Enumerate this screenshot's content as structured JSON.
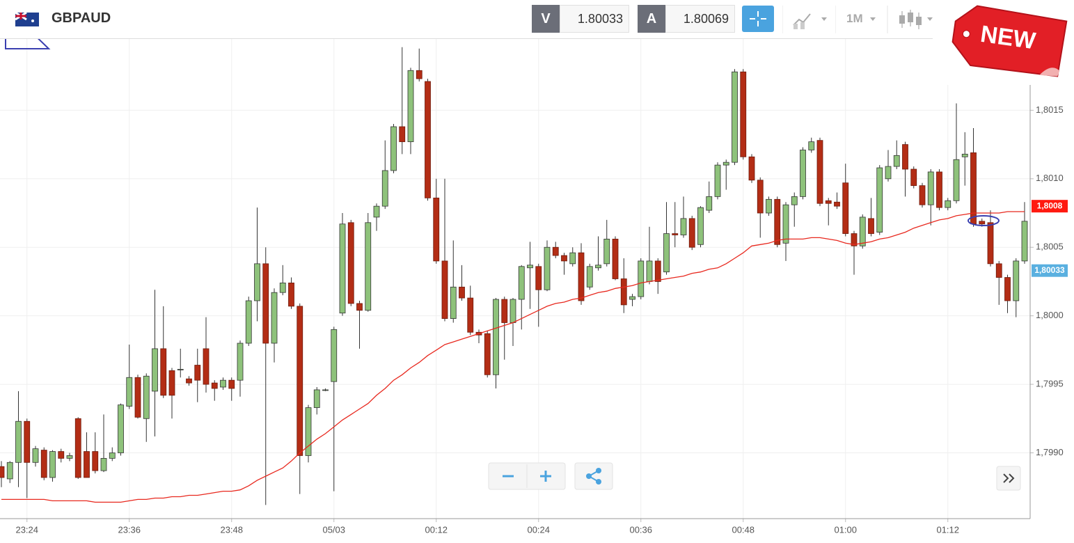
{
  "header": {
    "symbol": "GBPAUD",
    "bid_label": "V",
    "bid": "1.80033",
    "ask_label": "A",
    "ask": "1.80069",
    "timeframe": "1M"
  },
  "badge": "NEW",
  "chart_data": {
    "type": "candlestick",
    "categories": [
      null,
      null,
      null,
      "23:24",
      null,
      null,
      null,
      null,
      null,
      null,
      null,
      null,
      null,
      null,
      null,
      "23:36",
      null,
      null,
      null,
      null,
      null,
      null,
      null,
      null,
      null,
      null,
      null,
      "23:48",
      null,
      null,
      null,
      null,
      null,
      null,
      null,
      null,
      null,
      null,
      null,
      "05/03",
      null,
      null,
      null,
      null,
      null,
      null,
      null,
      null,
      null,
      null,
      null,
      "00:12",
      null,
      null,
      null,
      null,
      null,
      null,
      null,
      null,
      null,
      null,
      null,
      "00:24",
      null,
      null,
      null,
      null,
      null,
      null,
      null,
      null,
      null,
      null,
      null,
      "00:36",
      null,
      null,
      null,
      null,
      null,
      null,
      null,
      null,
      null,
      null,
      null,
      "00:48",
      null,
      null,
      null,
      null,
      null,
      null,
      null,
      null,
      null,
      null,
      null,
      "01:00",
      null,
      null,
      null,
      null,
      null,
      null,
      null,
      null,
      null,
      null,
      null,
      "01:12",
      null,
      null,
      null,
      null,
      null,
      null,
      null,
      null,
      null
    ],
    "open": [
      1.7989,
      1.79881,
      1.79893,
      1.79923,
      1.79893,
      1.79902,
      1.79882,
      1.79901,
      1.79896,
      1.79925,
      1.79901,
      1.79901,
      1.79887,
      1.79896,
      1.799,
      1.79934,
      1.79955,
      1.79925,
      1.79945,
      1.79976,
      1.7996,
      1.79961,
      1.79954,
      1.79964,
      1.79976,
      1.79951,
      1.79948,
      1.79953,
      1.79953,
      1.7998,
      1.80011,
      1.80038,
      1.7998,
      1.80017,
      1.80024,
      1.80007,
      1.79898,
      1.79933,
      1.79946,
      1.79952,
      1.80002,
      1.80068,
      1.80009,
      1.80004,
      1.80072,
      1.8008,
      1.80106,
      1.80138,
      1.80127,
      1.80179,
      1.80171,
      1.80086,
      1.8004,
      1.79998,
      1.80021,
      1.80013,
      1.79988,
      1.79987,
      1.79957,
      1.80012,
      1.79995,
      1.80012,
      1.80035,
      1.80036,
      1.80019,
      1.8005,
      1.80044,
      1.80038,
      1.80046,
      1.80021,
      1.80035,
      1.80038,
      1.80056,
      1.80027,
      1.80012,
      1.80014,
      1.80025,
      1.8004,
      1.80032,
      1.8006,
      1.80059,
      1.80071,
      1.80052,
      1.80077,
      1.80087,
      1.8011,
      1.80112,
      1.80178,
      1.80116,
      1.80099,
      1.80075,
      1.80085,
      1.80053,
      1.80081,
      1.80087,
      1.80121,
      1.80128,
      1.80084,
      1.80083,
      1.80097,
      1.8006,
      1.80051,
      1.80071,
      1.80061,
      1.801,
      1.80109,
      1.80125,
      1.80107,
      1.80095,
      1.80081,
      1.80105,
      1.80079,
      1.80084,
      1.80116,
      1.80119,
      1.80069,
      1.80068,
      1.80038,
      1.80028,
      1.80011,
      1.8004
    ],
    "high": [
      1.79894,
      1.79894,
      1.79945,
      1.79925,
      1.79905,
      1.79904,
      1.79902,
      1.79903,
      1.799,
      1.79926,
      1.79915,
      1.79915,
      1.79928,
      1.79904,
      1.79936,
      1.79979,
      1.79957,
      1.79958,
      1.80019,
      1.80007,
      1.79962,
      1.79976,
      1.79956,
      1.79976,
      1.79999,
      1.79953,
      1.79955,
      1.79955,
      1.79982,
      1.80014,
      1.80079,
      1.8005,
      1.8002,
      1.80037,
      1.80028,
      1.80009,
      1.79935,
      1.79948,
      1.79947,
      1.79992,
      1.80075,
      1.8007,
      1.80011,
      1.80075,
      1.80082,
      1.80128,
      1.8014,
      1.80196,
      1.80181,
      1.80195,
      1.80173,
      1.801,
      1.801,
      1.80055,
      1.80037,
      1.80022,
      1.7999,
      1.79989,
      1.80013,
      1.80014,
      1.80013,
      1.80037,
      1.80054,
      1.80038,
      1.80055,
      1.80054,
      1.80046,
      1.8005,
      1.80053,
      1.80038,
      1.80058,
      1.8007,
      1.80058,
      1.80042,
      1.80016,
      1.80042,
      1.80065,
      1.80042,
      1.80083,
      1.80083,
      1.80087,
      1.80073,
      1.8008,
      1.80098,
      1.80112,
      1.80114,
      1.8018,
      1.8018,
      1.80118,
      1.80101,
      1.80087,
      1.80087,
      1.80083,
      1.8009,
      1.80123,
      1.8013,
      1.8013,
      1.80086,
      1.8009,
      1.80111,
      1.80062,
      1.80074,
      1.80086,
      1.8011,
      1.80121,
      1.80128,
      1.80127,
      1.80109,
      1.80097,
      1.80107,
      1.80107,
      1.80086,
      1.80155,
      1.80134,
      1.80137,
      1.80071,
      1.80077,
      1.8004,
      1.8003,
      1.80042,
      1.80083
    ],
    "low": [
      1.79875,
      1.79878,
      1.79875,
      1.79867,
      1.7989,
      1.7988,
      1.79879,
      1.79893,
      1.79894,
      1.79881,
      1.79882,
      1.79885,
      1.79886,
      1.79894,
      1.79898,
      1.79932,
      1.79925,
      1.79908,
      1.79912,
      1.7994,
      1.79925,
      1.79955,
      1.79949,
      1.79937,
      1.79944,
      1.79938,
      1.79946,
      1.79938,
      1.79941,
      1.79978,
      1.79996,
      1.79862,
      1.79966,
      1.80015,
      1.80005,
      1.7987,
      1.79893,
      1.79928,
      1.79945,
      1.79872,
      1.8,
      1.80007,
      1.79976,
      1.80003,
      1.80062,
      1.80078,
      1.80104,
      1.80118,
      1.80118,
      1.80171,
      1.80084,
      1.80038,
      1.79996,
      1.79995,
      1.80011,
      1.79986,
      1.7998,
      1.79955,
      1.79947,
      1.79968,
      1.79978,
      1.7999,
      1.80005,
      1.79992,
      1.80018,
      1.80042,
      1.8003,
      1.80036,
      1.80008,
      1.80019,
      1.80033,
      1.80036,
      1.80026,
      1.80002,
      1.80007,
      1.80012,
      1.80023,
      1.80016,
      1.8003,
      1.8005,
      1.80057,
      1.80048,
      1.8005,
      1.80075,
      1.80085,
      1.80092,
      1.8011,
      1.80114,
      1.80097,
      1.80057,
      1.80073,
      1.8005,
      1.8004,
      1.80065,
      1.80085,
      1.80119,
      1.8008,
      1.80066,
      1.80078,
      1.80058,
      1.8003,
      1.80049,
      1.80058,
      1.80059,
      1.80098,
      1.80107,
      1.80087,
      1.80093,
      1.80079,
      1.80066,
      1.80077,
      1.80077,
      1.80082,
      1.80095,
      1.80065,
      1.80065,
      1.80036,
      1.80008,
      1.80002,
      1.79999,
      1.80038
    ],
    "close": [
      1.79882,
      1.79893,
      1.79923,
      1.79893,
      1.79903,
      1.79882,
      1.79901,
      1.79896,
      1.79898,
      1.79882,
      1.79882,
      1.79887,
      1.79896,
      1.799,
      1.79935,
      1.79955,
      1.79926,
      1.79956,
      1.79976,
      1.79942,
      1.79942,
      1.79961,
      1.79951,
      1.79953,
      1.7995,
      1.79947,
      1.79953,
      1.79947,
      1.7998,
      1.80011,
      1.80038,
      1.7998,
      1.80017,
      1.80024,
      1.80007,
      1.79898,
      1.79933,
      1.79946,
      1.79946,
      1.7999,
      1.80067,
      1.80009,
      1.80004,
      1.80068,
      1.8008,
      1.80106,
      1.80138,
      1.80127,
      1.80179,
      1.80173,
      1.80086,
      1.8004,
      1.79998,
      1.80021,
      1.80013,
      1.79988,
      1.79986,
      1.79957,
      1.80012,
      1.79995,
      1.80012,
      1.80036,
      1.80037,
      1.80019,
      1.8005,
      1.80044,
      1.8004,
      1.80046,
      1.80011,
      1.80036,
      1.80037,
      1.80056,
      1.80027,
      1.80008,
      1.80014,
      1.8004,
      1.8004,
      1.80025,
      1.8006,
      1.80059,
      1.80071,
      1.8005,
      1.80079,
      1.80087,
      1.8011,
      1.80112,
      1.80178,
      1.80116,
      1.80099,
      1.80075,
      1.80085,
      1.80052,
      1.80081,
      1.80087,
      1.80121,
      1.80127,
      1.80082,
      1.80082,
      1.8008,
      1.8006,
      1.80051,
      1.80072,
      1.8006,
      1.80108,
      1.80109,
      1.80117,
      1.80107,
      1.80095,
      1.80081,
      1.80105,
      1.80079,
      1.80084,
      1.80114,
      1.80118,
      1.80067,
      1.80067,
      1.80038,
      1.80028,
      1.80011,
      1.8004,
      1.80069
    ],
    "up_color": "#8ec27b",
    "down_color": "#b32d15",
    "ma_color": "#e8281e",
    "ma_values": [
      1.79866,
      1.79866,
      1.79866,
      1.79866,
      1.79866,
      1.79866,
      1.79865,
      1.79865,
      1.79865,
      1.79865,
      1.79865,
      1.79864,
      1.79864,
      1.79864,
      1.79864,
      1.79865,
      1.79866,
      1.79866,
      1.79867,
      1.79867,
      1.79868,
      1.79868,
      1.79869,
      1.79869,
      1.7987,
      1.79871,
      1.79872,
      1.79872,
      1.79873,
      1.79876,
      1.7988,
      1.79883,
      1.79886,
      1.79889,
      1.79894,
      1.799,
      1.79905,
      1.7991,
      1.79914,
      1.79919,
      1.79924,
      1.79928,
      1.79932,
      1.79936,
      1.79942,
      1.79947,
      1.79953,
      1.79957,
      1.79962,
      1.79966,
      1.79971,
      1.79975,
      1.79979,
      1.79981,
      1.79983,
      1.79985,
      1.79987,
      1.79989,
      1.79991,
      1.79993,
      1.79995,
      1.79998,
      1.80001,
      1.80004,
      1.80007,
      1.80009,
      1.8001,
      1.80012,
      1.80013,
      1.80015,
      1.80017,
      1.80018,
      1.8002,
      1.80021,
      1.80022,
      1.80024,
      1.80025,
      1.80026,
      1.80027,
      1.80028,
      1.80029,
      1.80031,
      1.80032,
      1.80034,
      1.80035,
      1.80038,
      1.80042,
      1.80046,
      1.80051,
      1.80052,
      1.80053,
      1.80055,
      1.80056,
      1.80056,
      1.80056,
      1.80057,
      1.80057,
      1.80056,
      1.80055,
      1.80053,
      1.80052,
      1.80053,
      1.80054,
      1.80056,
      1.80057,
      1.80059,
      1.80061,
      1.80064,
      1.80066,
      1.80068,
      1.8007,
      1.80071,
      1.80073,
      1.80074,
      1.80075,
      1.80075,
      1.80075,
      1.80075,
      1.80076,
      1.80076,
      1.80076
    ],
    "ylim": [
      1.79852,
      1.80202
    ],
    "yticks": [
      {
        "value": 1.799,
        "label": "1,7990"
      },
      {
        "value": 1.7995,
        "label": "1,7995"
      },
      {
        "value": 1.8,
        "label": "1,8000"
      },
      {
        "value": 1.8005,
        "label": "1,8005"
      },
      {
        "value": 1.801,
        "label": "1,8010"
      },
      {
        "value": 1.8015,
        "label": "1,8015"
      }
    ],
    "grid": true,
    "price_markers": [
      {
        "value": 1.8008,
        "label": "1,8008",
        "color": "#ff1a10"
      },
      {
        "value": 1.80033,
        "label": "1,80033",
        "color": "#5ab0e0"
      }
    ]
  }
}
